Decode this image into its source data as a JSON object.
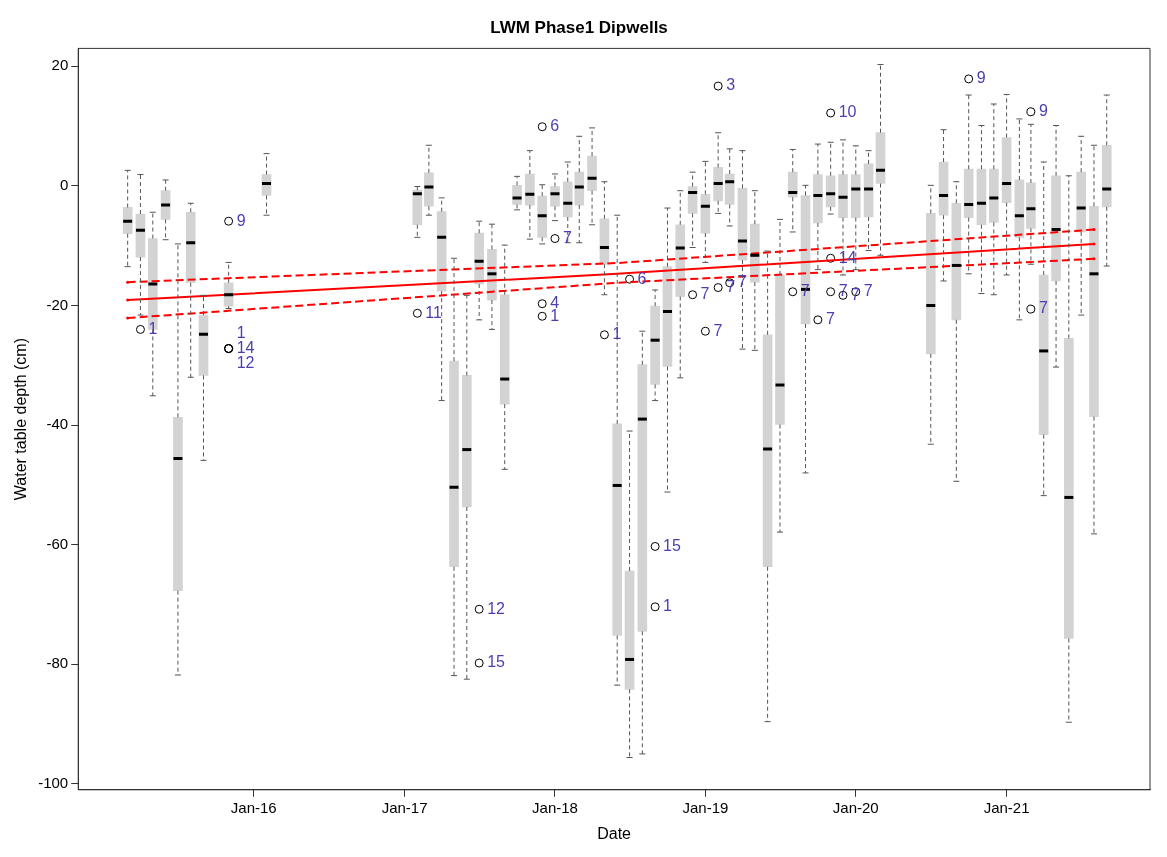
{
  "chart_data": {
    "type": "box",
    "title": "LWM Phase1 Dipwells",
    "xlabel": "Date",
    "ylabel": "Water table depth (cm)",
    "xlim": [
      "2014-11",
      "2021-12-15"
    ],
    "xticks": [
      {
        "value": "2016-01",
        "label": "Jan-16"
      },
      {
        "value": "2017-01",
        "label": "Jan-17"
      },
      {
        "value": "2018-01",
        "label": "Jan-18"
      },
      {
        "value": "2019-01",
        "label": "Jan-19"
      },
      {
        "value": "2020-01",
        "label": "Jan-20"
      },
      {
        "value": "2021-01",
        "label": "Jan-21"
      }
    ],
    "ylim": [
      -101,
      23
    ],
    "yticks": [
      -100,
      -80,
      -60,
      -40,
      -20,
      0,
      20
    ],
    "series": [
      {
        "color": "#d3d3d3",
        "x": [
          "2015-03",
          "2015-04",
          "2015-05",
          "2015-06",
          "2015-07",
          "2015-08",
          "2015-09",
          "2015-11",
          "2016-02",
          "2017-02",
          "2017-03",
          "2017-04",
          "2017-05",
          "2017-06",
          "2017-07",
          "2017-08",
          "2017-09",
          "2017-10",
          "2017-11",
          "2017-12",
          "2018-01",
          "2018-02",
          "2018-03",
          "2018-04",
          "2018-05",
          "2018-06",
          "2018-07",
          "2018-08",
          "2018-09",
          "2018-10",
          "2018-11",
          "2018-12",
          "2019-01",
          "2019-02",
          "2019-03",
          "2019-04",
          "2019-05",
          "2019-06",
          "2019-07",
          "2019-08",
          "2019-09",
          "2019-10",
          "2019-11",
          "2019-12",
          "2020-01",
          "2020-02",
          "2020-03",
          "2020-07",
          "2020-08",
          "2020-09",
          "2020-10",
          "2020-11",
          "2020-12",
          "2021-01",
          "2021-02",
          "2021-03",
          "2021-04",
          "2021-05",
          "2021-06",
          "2021-07",
          "2021-08",
          "2021-09"
        ],
        "boxes": [
          {
            "low": -13.5,
            "q1": -8.0,
            "median": -5.9,
            "q3": -3.6,
            "high": 2.6
          },
          {
            "low": -21.6,
            "q1": -11.9,
            "median": -7.4,
            "q3": -4.7,
            "high": 1.9
          },
          {
            "low": -35.1,
            "q1": -24.0,
            "median": -16.4,
            "q3": -8.8,
            "high": -4.4
          },
          {
            "low": -9.0,
            "q1": -5.6,
            "median": -3.2,
            "q3": -0.8,
            "high": 1.0
          },
          {
            "low": -81.8,
            "q1": -67.7,
            "median": -45.6,
            "q3": -38.7,
            "high": -9.7
          },
          {
            "low": -32.0,
            "q1": -16.2,
            "median": -9.5,
            "q3": -4.4,
            "high": -2.9
          },
          {
            "low": -45.9,
            "q1": -31.7,
            "median": -24.8,
            "q3": -21.6,
            "high": -18.3
          },
          {
            "low": -20.5,
            "q1": -20.1,
            "median": -18.2,
            "q3": -16.2,
            "high": -12.8
          },
          {
            "low": -4.9,
            "q1": -1.6,
            "median": 0.4,
            "q3": 1.9,
            "high": 5.4
          },
          {
            "low": -8.6,
            "q1": -6.5,
            "median": -1.3,
            "q3": -0.7,
            "high": -0.1
          },
          {
            "low": -4.9,
            "q1": -3.4,
            "median": -0.2,
            "q3": 2.2,
            "high": 6.8
          },
          {
            "low": -35.9,
            "q1": -17.6,
            "median": -8.6,
            "q3": -4.3,
            "high": -2.0
          },
          {
            "low": -81.9,
            "q1": -63.7,
            "median": -50.4,
            "q3": -29.3,
            "high": -12.1
          },
          {
            "low": -82.5,
            "q1": -53.7,
            "median": -44.1,
            "q3": -31.7,
            "high": -18.3
          },
          {
            "low": -22.4,
            "q1": -16.4,
            "median": -12.6,
            "q3": -7.9,
            "high": -5.9
          },
          {
            "low": -24.0,
            "q1": -19.1,
            "median": -14.7,
            "q3": -10.6,
            "high": -6.4
          },
          {
            "low": -47.4,
            "q1": -36.5,
            "median": -32.3,
            "q3": -18.2,
            "high": -9.9
          },
          {
            "low": -4.0,
            "q1": -3.1,
            "median": -2.0,
            "q3": 0.1,
            "high": 1.6
          },
          {
            "low": -8.9,
            "q1": -3.2,
            "median": -1.4,
            "q3": 2.0,
            "high": 5.9
          },
          {
            "low": -9.7,
            "q1": -8.6,
            "median": -5.0,
            "q3": -1.7,
            "high": 0.2
          },
          {
            "low": -5.8,
            "q1": -3.4,
            "median": -1.3,
            "q3": -0.1,
            "high": 2.0
          },
          {
            "low": -9.5,
            "q1": -5.2,
            "median": -2.9,
            "q3": 0.7,
            "high": 4.0
          },
          {
            "low": -9.5,
            "q1": -3.2,
            "median": -0.2,
            "q3": 2.3,
            "high": 8.3
          },
          {
            "low": -6.5,
            "q1": -0.8,
            "median": 1.3,
            "q3": 5.0,
            "high": 9.7
          },
          {
            "low": -18.2,
            "q1": -13.1,
            "median": -10.3,
            "q3": -5.5,
            "high": 0.7
          },
          {
            "low": -83.5,
            "q1": -75.2,
            "median": -50.1,
            "q3": -39.8,
            "high": -4.9
          },
          {
            "low": -95.6,
            "q1": -84.2,
            "median": -79.2,
            "q3": -64.4,
            "high": -41.0
          },
          {
            "low": -95.0,
            "q1": -74.5,
            "median": -39.0,
            "q3": -29.9,
            "high": -24.3
          },
          {
            "low": -35.9,
            "q1": -33.2,
            "median": -25.8,
            "q3": -20.1,
            "high": -17.4
          },
          {
            "low": -51.2,
            "q1": -30.2,
            "median": -21.0,
            "q3": -13.5,
            "high": -3.7
          },
          {
            "low": -32.1,
            "q1": -18.5,
            "median": -10.4,
            "q3": -6.5,
            "high": -0.8
          },
          {
            "low": -10.3,
            "q1": -4.6,
            "median": -1.1,
            "q3": -0.1,
            "high": 2.3
          },
          {
            "low": -12.8,
            "q1": -7.9,
            "median": -3.4,
            "q3": -1.4,
            "high": 4.1
          },
          {
            "low": -4.6,
            "q1": -2.5,
            "median": 0.4,
            "q3": 3.1,
            "high": 8.9
          },
          {
            "low": -6.7,
            "q1": -3.1,
            "median": 0.7,
            "q3": 2.0,
            "high": 6.2
          },
          {
            "low": -27.3,
            "q1": -12.4,
            "median": -9.2,
            "q3": -0.4,
            "high": 5.9
          },
          {
            "low": -27.5,
            "q1": -16.1,
            "median": -11.6,
            "q3": -6.4,
            "high": -0.8
          },
          {
            "low": -89.6,
            "q1": -63.7,
            "median": -44.0,
            "q3": -24.9,
            "high": -10.9
          },
          {
            "low": -57.9,
            "q1": -39.9,
            "median": -33.3,
            "q3": -14.9,
            "high": -5.6
          },
          {
            "low": -7.7,
            "q1": -1.9,
            "median": -1.1,
            "q3": 2.3,
            "high": 6.1
          },
          {
            "low": -48.0,
            "q1": -23.1,
            "median": -17.3,
            "q3": -1.6,
            "high": 0.1
          },
          {
            "low": -14.0,
            "q1": -6.2,
            "median": -1.6,
            "q3": 1.9,
            "high": 7.0
          },
          {
            "low": -4.7,
            "q1": -3.5,
            "median": -1.3,
            "q3": 1.7,
            "high": 7.3
          },
          {
            "low": -14.9,
            "q1": -5.3,
            "median": -1.9,
            "q3": 1.9,
            "high": 7.7
          },
          {
            "low": -14.0,
            "q1": -5.3,
            "median": -0.5,
            "q3": 1.9,
            "high": 6.7
          },
          {
            "low": -10.8,
            "q1": -5.2,
            "median": -0.5,
            "q3": 3.7,
            "high": 5.9
          },
          {
            "low": -11.6,
            "q1": 0.4,
            "median": 2.6,
            "q3": 8.9,
            "high": 20.3
          },
          {
            "low": -43.2,
            "q1": -28.1,
            "median": -20.0,
            "q3": -4.6,
            "high": 0.1
          },
          {
            "low": -15.9,
            "q1": -4.9,
            "median": -1.6,
            "q3": 4.0,
            "high": 9.4
          },
          {
            "low": -49.4,
            "q1": -22.4,
            "median": -13.3,
            "q3": -2.9,
            "high": 0.7
          },
          {
            "low": -14.7,
            "q1": -5.3,
            "median": -3.1,
            "q3": 2.8,
            "high": 15.2
          },
          {
            "low": -18.0,
            "q1": -6.5,
            "median": -2.9,
            "q3": 2.8,
            "high": 10.1
          },
          {
            "low": -18.2,
            "q1": -6.1,
            "median": -2.0,
            "q3": 2.8,
            "high": 13.7
          },
          {
            "low": -14.9,
            "q1": -2.8,
            "median": 0.4,
            "q3": 8.1,
            "high": 15.3
          },
          {
            "low": -22.4,
            "q1": -8.6,
            "median": -5.0,
            "q3": 1.0,
            "high": 11.2
          },
          {
            "low": -13.1,
            "q1": -7.1,
            "median": -3.8,
            "q3": 0.5,
            "high": 10.3
          },
          {
            "low": -51.8,
            "q1": -41.6,
            "median": -27.6,
            "q3": -14.9,
            "high": 4.0
          },
          {
            "low": -30.3,
            "q1": -15.9,
            "median": -7.3,
            "q3": 1.7,
            "high": 10.1
          },
          {
            "low": -89.7,
            "q1": -75.7,
            "median": -52.1,
            "q3": -25.5,
            "high": 1.7
          },
          {
            "low": -21.6,
            "q1": -7.7,
            "median": -3.7,
            "q3": 2.3,
            "high": 8.3
          },
          {
            "low": -58.2,
            "q1": -38.6,
            "median": -14.7,
            "q3": -3.4,
            "high": 6.8
          },
          {
            "low": -13.4,
            "q1": -3.5,
            "median": -0.5,
            "q3": 6.8,
            "high": 15.2
          }
        ]
      },
      {
        "type": "scatter",
        "color": "#000000",
        "x": [
          "2015-04",
          "2015-11",
          "2015-11",
          "2015-11",
          "2015-11",
          "2017-02",
          "2017-07",
          "2017-07",
          "2017-12",
          "2017-12",
          "2017-12",
          "2018-01",
          "2018-05",
          "2018-07",
          "2018-09",
          "2018-09",
          "2018-12",
          "2019-01",
          "2019-02",
          "2019-02",
          "2019-03",
          "2019-08",
          "2019-10",
          "2019-11",
          "2019-11",
          "2019-11",
          "2019-12",
          "2020-01",
          "2020-10",
          "2021-03",
          "2021-03"
        ],
        "values": [
          -24.0,
          -5.9,
          -27.2,
          -27.2,
          -27.2,
          -21.3,
          -70.8,
          -79.8,
          9.9,
          -19.7,
          -21.8,
          -8.8,
          -24.9,
          -15.6,
          -60.3,
          -70.4,
          -18.2,
          -24.3,
          16.7,
          -17.0,
          -16.2,
          -17.7,
          -22.4,
          12.2,
          -12.1,
          -17.7,
          -18.3,
          -17.7,
          17.9,
          12.4,
          -20.6
        ]
      },
      {
        "type": "line",
        "color": "#ff0000",
        "line_style": "solid",
        "x": [
          "2015-03",
          "2018-06",
          "2021-08"
        ],
        "values": [
          -19.1,
          -14.7,
          -9.7
        ]
      },
      {
        "type": "line",
        "color": "#ff0000",
        "line_style": "dashed",
        "x": [
          "2015-03",
          "2018-06",
          "2021-08"
        ],
        "values": [
          -16.1,
          -12.9,
          -7.3
        ]
      },
      {
        "type": "line",
        "color": "#ff0000",
        "line_style": "dashed",
        "x": [
          "2015-03",
          "2018-06",
          "2021-08"
        ],
        "values": [
          -22.1,
          -16.2,
          -12.2
        ]
      }
    ],
    "annotations": [
      {
        "text": "1",
        "x": "2015-04",
        "y": -24.0
      },
      {
        "text": "9",
        "x": "2015-11",
        "y": -5.9
      },
      {
        "text": "1",
        "x": "2015-11",
        "y": -27.2
      },
      {
        "text": "14",
        "x": "2015-11",
        "y": -27.2
      },
      {
        "text": "12",
        "x": "2015-11",
        "y": -27.2
      },
      {
        "text": "11",
        "x": "2017-02",
        "y": -21.3
      },
      {
        "text": "12",
        "x": "2017-07",
        "y": -70.8
      },
      {
        "text": "15",
        "x": "2017-07",
        "y": -79.8
      },
      {
        "text": "6",
        "x": "2017-12",
        "y": 9.9
      },
      {
        "text": "4",
        "x": "2017-12",
        "y": -19.7
      },
      {
        "text": "1",
        "x": "2017-12",
        "y": -21.8
      },
      {
        "text": "7",
        "x": "2018-01",
        "y": -8.8
      },
      {
        "text": "1",
        "x": "2018-05",
        "y": -24.9
      },
      {
        "text": "6",
        "x": "2018-07",
        "y": -15.6
      },
      {
        "text": "15",
        "x": "2018-09",
        "y": -60.3
      },
      {
        "text": "1",
        "x": "2018-09",
        "y": -70.4
      },
      {
        "text": "7",
        "x": "2018-12",
        "y": -18.2
      },
      {
        "text": "7",
        "x": "2019-01",
        "y": -24.3
      },
      {
        "text": "3",
        "x": "2019-02",
        "y": 16.7
      },
      {
        "text": "7",
        "x": "2019-02",
        "y": -17.0
      },
      {
        "text": "7",
        "x": "2019-03",
        "y": -16.2
      },
      {
        "text": "7",
        "x": "2019-08",
        "y": -17.7
      },
      {
        "text": "7",
        "x": "2019-10",
        "y": -22.4
      },
      {
        "text": "10",
        "x": "2019-11",
        "y": 12.2
      },
      {
        "text": "14",
        "x": "2019-11",
        "y": -12.1
      },
      {
        "text": "7",
        "x": "2019-11",
        "y": -17.7
      },
      {
        "text": "7",
        "x": "2019-12",
        "y": -18.3
      },
      {
        "text": "7",
        "x": "2020-01",
        "y": -17.7
      },
      {
        "text": "9",
        "x": "2020-10",
        "y": 17.9
      },
      {
        "text": "9",
        "x": "2021-03",
        "y": 12.4
      },
      {
        "text": "7",
        "x": "2021-03",
        "y": -20.6
      }
    ]
  }
}
